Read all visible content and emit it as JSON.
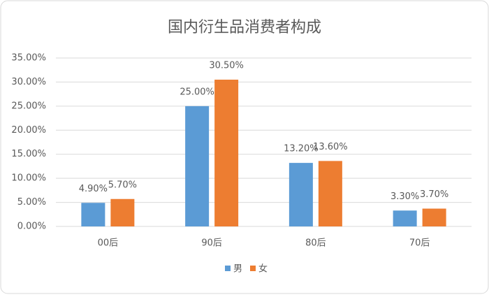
{
  "chart_data": {
    "type": "bar",
    "title": "国内衍生品消费者构成",
    "categories": [
      "00后",
      "90后",
      "80后",
      "70后"
    ],
    "series": [
      {
        "name": "男",
        "color": "#5b9bd5",
        "values": [
          4.9,
          25.0,
          13.2,
          3.3
        ],
        "value_labels": [
          "4.90%",
          "25.00%",
          "13.20%",
          "3.30%"
        ]
      },
      {
        "name": "女",
        "color": "#ed7d31",
        "values": [
          5.7,
          30.5,
          13.6,
          3.7
        ],
        "value_labels": [
          "5.70%",
          "30.50%",
          "13.60%",
          "3.70%"
        ]
      }
    ],
    "ylim": [
      0,
      35
    ],
    "yticks": [
      {
        "value": 0,
        "label": "0.00%"
      },
      {
        "value": 5,
        "label": "5.00%"
      },
      {
        "value": 10,
        "label": "10.00%"
      },
      {
        "value": 15,
        "label": "15.00%"
      },
      {
        "value": 20,
        "label": "20.00%"
      },
      {
        "value": 25,
        "label": "25.00%"
      },
      {
        "value": 30,
        "label": "30.00%"
      },
      {
        "value": 35,
        "label": "35.00%"
      }
    ],
    "grid": true,
    "legend": "bottom"
  }
}
